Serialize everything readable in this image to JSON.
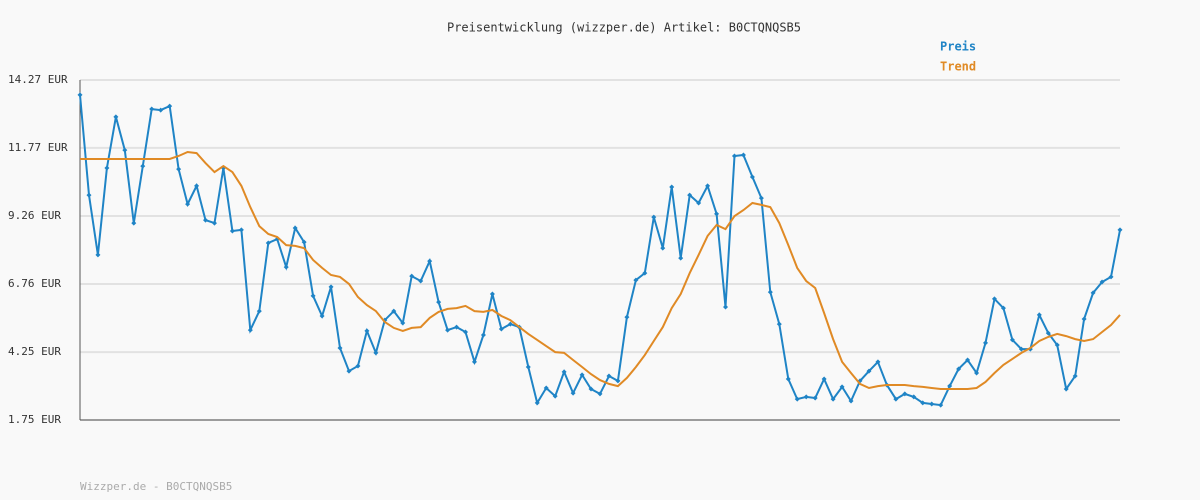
{
  "chart_data": {
    "type": "line",
    "title": "Preisentwicklung (wizzper.de) Artikel: B0CTQNQSB5",
    "footer": "Wizzper.de - B0CTQNQSB5",
    "ylim": [
      1.75,
      14.27
    ],
    "yticks": [
      {
        "value": 1.75,
        "label": "1.75 EUR"
      },
      {
        "value": 4.25,
        "label": "4.25 EUR"
      },
      {
        "value": 6.76,
        "label": "6.76 EUR"
      },
      {
        "value": 9.26,
        "label": "9.26 EUR"
      },
      {
        "value": 11.77,
        "label": "11.77 EUR"
      },
      {
        "value": 14.27,
        "label": "14.27 EUR"
      }
    ],
    "grid": true,
    "series": [
      {
        "name": "Preis",
        "color": "#1f84c6",
        "markers": true,
        "values": [
          13.72,
          10.03,
          7.83,
          11.03,
          12.91,
          11.69,
          9.0,
          11.1,
          13.2,
          13.16,
          13.31,
          10.99,
          9.7,
          10.37,
          9.11,
          9.0,
          11.03,
          8.71,
          8.75,
          5.06,
          5.76,
          8.27,
          8.41,
          7.38,
          8.82,
          8.3,
          6.32,
          5.58,
          6.65,
          4.4,
          3.55,
          3.74,
          5.03,
          4.22,
          5.43,
          5.76,
          5.32,
          7.05,
          6.87,
          7.6,
          6.09,
          5.06,
          5.17,
          4.99,
          3.89,
          4.88,
          6.39,
          5.1,
          5.28,
          5.17,
          3.7,
          2.38,
          2.93,
          2.63,
          3.52,
          2.74,
          3.41,
          2.89,
          2.71,
          3.37,
          3.19,
          5.54,
          6.9,
          7.16,
          9.22,
          8.08,
          10.33,
          7.71,
          10.03,
          9.74,
          10.37,
          9.34,
          5.91,
          11.47,
          11.51,
          10.7,
          9.92,
          6.46,
          5.28,
          3.26,
          2.52,
          2.6,
          2.56,
          3.26,
          2.52,
          2.97,
          2.45,
          3.19,
          3.55,
          3.89,
          3.04,
          2.52,
          2.71,
          2.6,
          2.38,
          2.34,
          2.3,
          3.0,
          3.63,
          3.96,
          3.48,
          4.59,
          6.21,
          5.87,
          4.7,
          4.36,
          4.36,
          5.62,
          4.95,
          4.51,
          2.89,
          3.37,
          5.47,
          6.43,
          6.83,
          7.02,
          8.75
        ]
      },
      {
        "name": "Trend",
        "color": "#e08a25",
        "markers": false,
        "values": [
          11.36,
          11.36,
          11.36,
          11.36,
          11.36,
          11.36,
          11.36,
          11.36,
          11.36,
          11.36,
          11.36,
          11.47,
          11.62,
          11.58,
          11.21,
          10.88,
          11.1,
          10.88,
          10.37,
          9.59,
          8.89,
          8.6,
          8.49,
          8.19,
          8.16,
          8.08,
          7.64,
          7.35,
          7.09,
          7.02,
          6.76,
          6.28,
          5.98,
          5.76,
          5.36,
          5.14,
          5.03,
          5.14,
          5.17,
          5.51,
          5.73,
          5.84,
          5.87,
          5.95,
          5.76,
          5.73,
          5.8,
          5.58,
          5.43,
          5.17,
          4.92,
          4.7,
          4.47,
          4.25,
          4.22,
          3.96,
          3.7,
          3.44,
          3.22,
          3.08,
          3.0,
          3.3,
          3.7,
          4.14,
          4.66,
          5.17,
          5.87,
          6.39,
          7.16,
          7.83,
          8.53,
          8.93,
          8.78,
          9.26,
          9.48,
          9.74,
          9.67,
          9.59,
          9.0,
          8.19,
          7.35,
          6.87,
          6.61,
          5.69,
          4.73,
          3.89,
          3.48,
          3.08,
          2.93,
          3.0,
          3.04,
          3.04,
          3.04,
          3.0,
          2.97,
          2.93,
          2.89,
          2.89,
          2.89,
          2.89,
          2.93,
          3.15,
          3.48,
          3.78,
          4.0,
          4.22,
          4.4,
          4.66,
          4.81,
          4.92,
          4.84,
          4.73,
          4.66,
          4.73,
          4.99,
          5.25,
          5.62
        ]
      }
    ]
  }
}
